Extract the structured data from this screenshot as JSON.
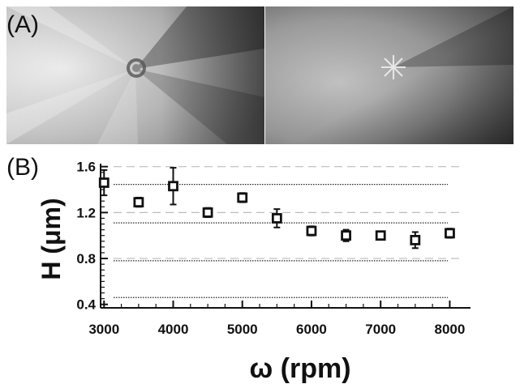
{
  "panels": {
    "a_label": "(A)",
    "b_label": "(B)"
  },
  "images": {
    "left_pattern": "five-arm radial star pattern, grayscale",
    "right_pattern": "small bright star pattern, grayscale"
  },
  "colors": {
    "axis": "#111111",
    "marker": "#111111",
    "dashed_line": "#bbbbbb",
    "dotted_line": "#222222"
  },
  "chart_data": {
    "type": "scatter",
    "xlabel": "ω (rpm)",
    "ylabel": "H (μm)",
    "x_ticks": [
      3000,
      4000,
      5000,
      6000,
      7000,
      8000
    ],
    "y_ticks": [
      "0.4",
      "0.8",
      "1.2",
      "1.6"
    ],
    "xlim": [
      2950,
      8300
    ],
    "ylim": [
      0.37,
      1.64
    ],
    "grid": "horizontal reference lines (dashed at 1.6, 1.2, 0.8; dotted at 1.445, 1.11, 0.78, 0.46)",
    "reference_lines": {
      "dashed": [
        1.6,
        1.2,
        0.8
      ],
      "dotted": [
        1.445,
        1.11,
        0.78,
        0.46
      ]
    },
    "series": [
      {
        "marker": "open-square",
        "x": [
          3000,
          3500,
          4000,
          4500,
          5000,
          5500,
          6000,
          6500,
          7000,
          7500,
          8000
        ],
        "y": [
          1.46,
          1.29,
          1.43,
          1.2,
          1.33,
          1.15,
          1.04,
          1.0,
          1.0,
          0.96,
          1.02
        ],
        "error": [
          0.11,
          0.04,
          0.16,
          0.04,
          0.04,
          0.08,
          0.04,
          0.05,
          0.03,
          0.07,
          0.04
        ]
      }
    ]
  }
}
